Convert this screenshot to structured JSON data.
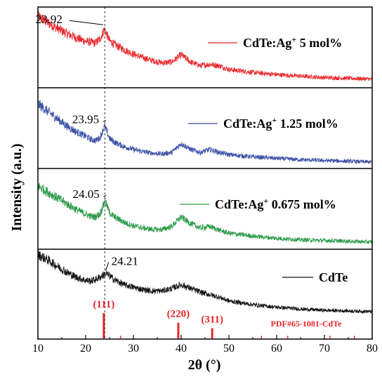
{
  "chart_data": {
    "type": "line",
    "xlabel": "2θ (°)",
    "ylabel": "Intensity (a.u.)",
    "xlim": [
      10,
      80
    ],
    "xticks": [
      "10",
      "20",
      "30",
      "40",
      "50",
      "60",
      "70",
      "80"
    ],
    "reference_line_x": 24.0,
    "series": [
      {
        "name_main": "CdTe:Ag",
        "name_sup": "+",
        "name_rest": " 5 mol%",
        "color": "#e8262b",
        "peak_label": "23.92",
        "x": [
          10,
          12,
          14,
          16,
          18,
          20,
          21,
          22,
          23,
          23.92,
          25,
          26,
          28,
          30,
          32,
          34,
          36,
          38,
          40,
          42,
          44,
          46,
          48,
          50,
          55,
          60,
          65,
          70,
          75,
          80
        ],
        "y": [
          0.93,
          0.85,
          0.77,
          0.7,
          0.64,
          0.59,
          0.58,
          0.57,
          0.62,
          0.76,
          0.6,
          0.55,
          0.48,
          0.42,
          0.37,
          0.33,
          0.3,
          0.31,
          0.41,
          0.31,
          0.26,
          0.28,
          0.26,
          0.21,
          0.17,
          0.14,
          0.12,
          0.1,
          0.09,
          0.08
        ]
      },
      {
        "name_main": "CdTe:Ag",
        "name_sup": "+",
        "name_rest": " 1.25 mol%",
        "color": "#3a4fa6",
        "peak_label": "23.95",
        "x": [
          10,
          12,
          14,
          16,
          18,
          20,
          21,
          22,
          23,
          23.95,
          25,
          26,
          28,
          30,
          32,
          34,
          36,
          38,
          40,
          42,
          44,
          46,
          48,
          50,
          55,
          60,
          65,
          70,
          75,
          80
        ],
        "y": [
          0.84,
          0.74,
          0.64,
          0.54,
          0.46,
          0.4,
          0.36,
          0.34,
          0.38,
          0.54,
          0.37,
          0.32,
          0.26,
          0.22,
          0.19,
          0.17,
          0.16,
          0.18,
          0.3,
          0.22,
          0.18,
          0.22,
          0.18,
          0.15,
          0.12,
          0.1,
          0.08,
          0.07,
          0.06,
          0.05
        ]
      },
      {
        "name_main": "CdTe:Ag",
        "name_sup": "+",
        "name_rest": " 0.675 mol%",
        "color": "#2a9a48",
        "peak_label": "24.05",
        "x": [
          10,
          12,
          14,
          16,
          18,
          20,
          21,
          22,
          23,
          24.05,
          25,
          26,
          28,
          30,
          32,
          34,
          36,
          38,
          40,
          42,
          44,
          46,
          48,
          50,
          55,
          60,
          65,
          70,
          75,
          80
        ],
        "y": [
          0.82,
          0.74,
          0.66,
          0.58,
          0.5,
          0.44,
          0.41,
          0.4,
          0.44,
          0.62,
          0.46,
          0.4,
          0.33,
          0.28,
          0.25,
          0.23,
          0.23,
          0.27,
          0.4,
          0.31,
          0.25,
          0.27,
          0.22,
          0.18,
          0.14,
          0.11,
          0.09,
          0.08,
          0.07,
          0.06
        ]
      },
      {
        "name_main": "CdTe",
        "name_sup": "",
        "name_rest": "",
        "color": "#111111",
        "peak_label": "24.21",
        "x": [
          10,
          12,
          14,
          16,
          18,
          20,
          21,
          22,
          23,
          24.21,
          25,
          26,
          28,
          30,
          32,
          34,
          36,
          38,
          40,
          42,
          44,
          46,
          48,
          50,
          55,
          60,
          65,
          70,
          75,
          80
        ],
        "y": [
          0.98,
          0.9,
          0.8,
          0.7,
          0.62,
          0.57,
          0.56,
          0.58,
          0.62,
          0.68,
          0.64,
          0.58,
          0.5,
          0.46,
          0.42,
          0.4,
          0.4,
          0.44,
          0.5,
          0.44,
          0.38,
          0.34,
          0.3,
          0.24,
          0.18,
          0.14,
          0.11,
          0.09,
          0.08,
          0.07
        ]
      }
    ],
    "reference_pattern": {
      "name": "PDF#65-1081-CdTe",
      "color": "#e8262b",
      "peaks": [
        {
          "x": 23.8,
          "h": 1.0,
          "label": "(111)"
        },
        {
          "x": 27.3,
          "h": 0.1,
          "label": ""
        },
        {
          "x": 39.4,
          "h": 0.62,
          "label": "(220)"
        },
        {
          "x": 46.5,
          "h": 0.4,
          "label": "(311)"
        },
        {
          "x": 56.8,
          "h": 0.1,
          "label": ""
        },
        {
          "x": 62.3,
          "h": 0.1,
          "label": ""
        },
        {
          "x": 71.2,
          "h": 0.1,
          "label": ""
        },
        {
          "x": 76.3,
          "h": 0.1,
          "label": ""
        }
      ]
    }
  }
}
